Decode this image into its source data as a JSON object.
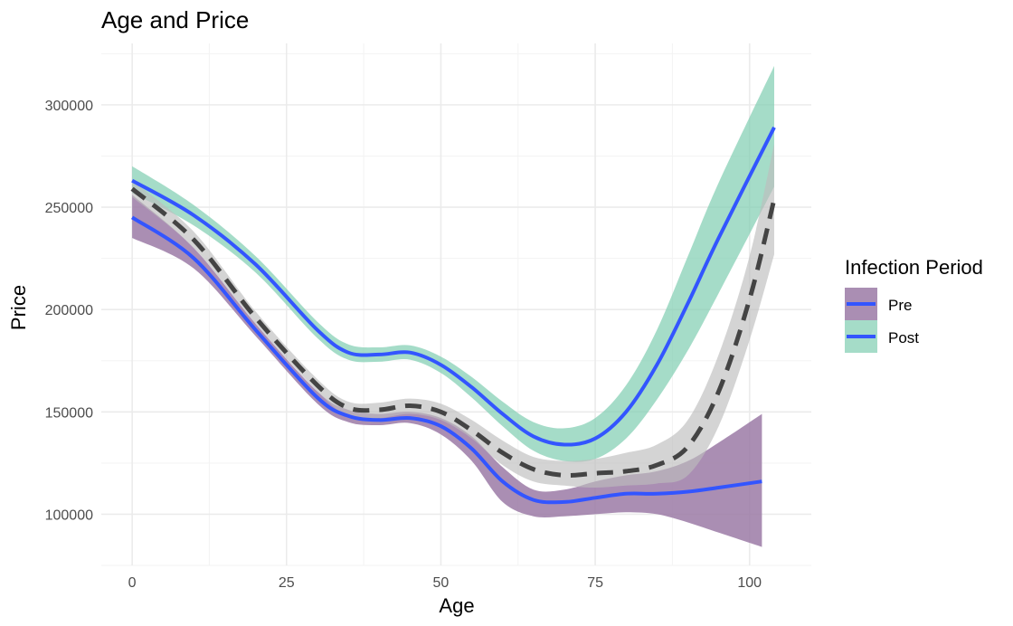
{
  "chart_data": {
    "type": "line",
    "title": "Age and Price",
    "xlabel": "Age",
    "ylabel": "Price",
    "xlim": [
      -5,
      110
    ],
    "ylim": [
      75000,
      330000
    ],
    "x_ticks": [
      0,
      25,
      50,
      75,
      100
    ],
    "y_ticks": [
      100000,
      150000,
      200000,
      250000,
      300000
    ],
    "grid": true,
    "legend": {
      "title": "Infection Period",
      "position": "right"
    },
    "series": [
      {
        "name": "Pre",
        "line_color": "#3355ff",
        "band_color": "#9b7aa6",
        "x": [
          0,
          10,
          20,
          30,
          35,
          40,
          45,
          50,
          55,
          60,
          65,
          70,
          75,
          80,
          85,
          90,
          95,
          102
        ],
        "y": [
          245000,
          225000,
          190000,
          157000,
          148000,
          146000,
          147000,
          143000,
          132000,
          116000,
          107000,
          106000,
          108000,
          110000,
          110000,
          111000,
          113000,
          116000
        ],
        "lower": [
          235000,
          220000,
          187000,
          154000,
          145000,
          143500,
          144500,
          139000,
          126000,
          106000,
          99000,
          99000,
          100000,
          101000,
          100000,
          96000,
          91000,
          84000
        ],
        "upper": [
          256000,
          230000,
          193000,
          160000,
          151000,
          149000,
          150000,
          147000,
          138000,
          123000,
          112000,
          112000,
          116000,
          119000,
          121000,
          126000,
          135000,
          149000
        ]
      },
      {
        "name": "Post",
        "line_color": "#3355ff",
        "band_color": "#7fcdb0",
        "x": [
          0,
          10,
          20,
          30,
          35,
          40,
          45,
          50,
          55,
          60,
          65,
          70,
          75,
          80,
          85,
          90,
          95,
          104
        ],
        "y": [
          263000,
          246000,
          222000,
          190000,
          179000,
          178000,
          179000,
          173000,
          162000,
          149000,
          138000,
          134000,
          137000,
          150000,
          173000,
          203000,
          235000,
          289000
        ],
        "lower": [
          257000,
          241000,
          218000,
          186000,
          175500,
          174500,
          175500,
          169000,
          157000,
          143000,
          131000,
          126000,
          127000,
          137000,
          156000,
          180000,
          208000,
          260000
        ],
        "upper": [
          270000,
          251000,
          226000,
          194000,
          183000,
          181500,
          182500,
          177000,
          167000,
          155000,
          145000,
          142000,
          147000,
          163000,
          190000,
          226000,
          262000,
          319000
        ]
      },
      {
        "name": "",
        "line_color": "#444444",
        "band_color": "#bdbdbd",
        "dashed": true,
        "x": [
          0,
          10,
          20,
          30,
          35,
          40,
          45,
          50,
          55,
          60,
          65,
          70,
          75,
          80,
          85,
          90,
          95,
          100,
          104
        ],
        "y": [
          259000,
          234000,
          196000,
          163000,
          152000,
          151000,
          153000,
          150000,
          141000,
          130000,
          122000,
          119000,
          120000,
          121000,
          124000,
          133000,
          160000,
          205000,
          254000
        ],
        "lower": [
          255000,
          230000,
          193000,
          160000,
          148000,
          147000,
          149000,
          146000,
          137000,
          124000,
          116000,
          114000,
          113000,
          114000,
          115000,
          119000,
          143000,
          185000,
          227000
        ],
        "upper": [
          263000,
          238000,
          199000,
          166000,
          155000,
          154500,
          156500,
          154000,
          146000,
          136000,
          128000,
          126000,
          127000,
          130000,
          134000,
          146000,
          178000,
          226000,
          281000
        ]
      }
    ]
  }
}
